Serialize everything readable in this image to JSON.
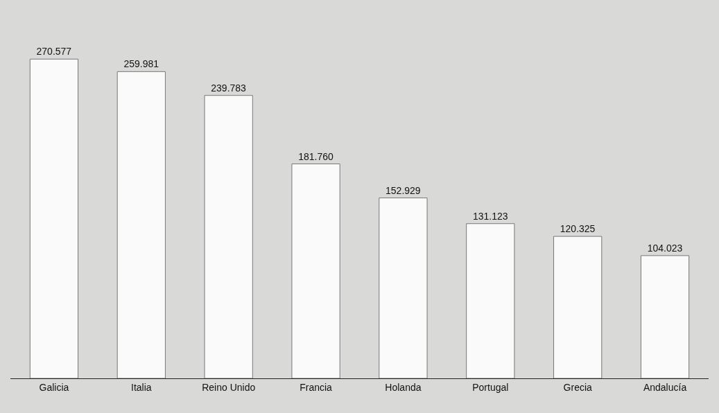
{
  "chart_data": {
    "type": "bar",
    "categories": [
      "Galicia",
      "Italia",
      "Reino Unido",
      "Francia",
      "Holanda",
      "Portugal",
      "Grecia",
      "Andalucía"
    ],
    "values": [
      270.577,
      259.981,
      239.783,
      181.76,
      152.929,
      131.123,
      120.325,
      104.023
    ],
    "value_labels": [
      "270.577",
      "259.981",
      "239.783",
      "181.760",
      "152.929",
      "131.123",
      "120.325",
      "104.023"
    ],
    "color": "#fafafa"
  }
}
